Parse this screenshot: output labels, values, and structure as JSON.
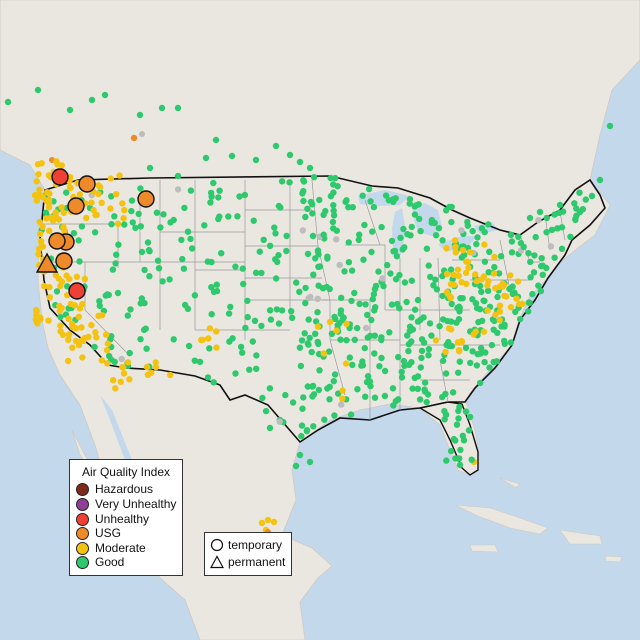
{
  "legend": {
    "title": "Air Quality Index",
    "items": [
      {
        "label": "Hazardous",
        "color": "#7e2a1b"
      },
      {
        "label": "Very Unhealthy",
        "color": "#8f3f97"
      },
      {
        "label": "Unhealthy",
        "color": "#ee4034"
      },
      {
        "label": "USG",
        "color": "#ef8a2b"
      },
      {
        "label": "Moderate",
        "color": "#f4c311"
      },
      {
        "label": "Good",
        "color": "#2ec96c"
      }
    ]
  },
  "monitor_types": {
    "items": [
      {
        "label": "temporary",
        "shape": "circle"
      },
      {
        "label": "permanent",
        "shape": "triangle"
      }
    ]
  },
  "colors": {
    "ocean": "#c3d8ea",
    "land": "#eae7e1",
    "border": "#111111",
    "state_line": "#9a9a9a",
    "no_data": "#bdbdbd"
  }
}
